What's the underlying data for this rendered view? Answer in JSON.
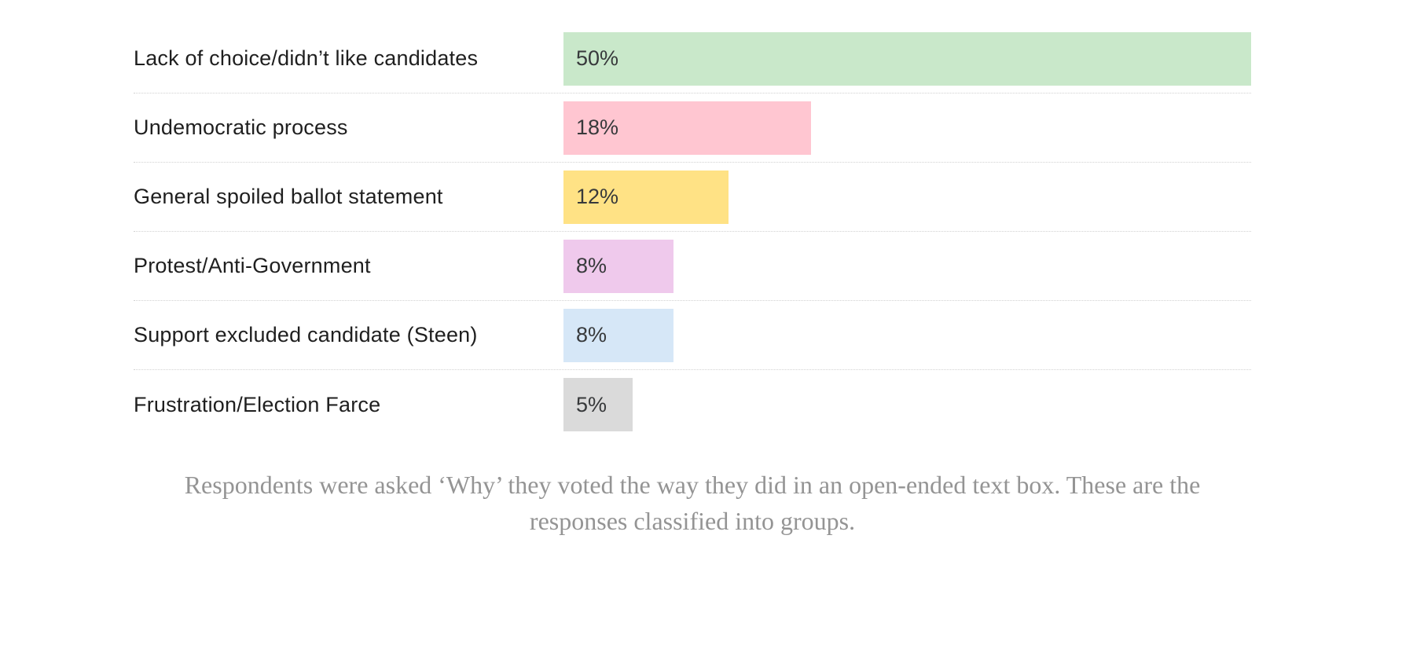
{
  "chart_data": {
    "type": "bar",
    "orientation": "horizontal",
    "categories": [
      "Lack of choice/didn’t like candidates",
      "Undemocratic process",
      "General spoiled ballot statement",
      "Protest/Anti-Government",
      "Support excluded candidate (Steen)",
      "Frustration/Election Farce"
    ],
    "values": [
      50,
      18,
      12,
      8,
      8,
      5
    ],
    "value_labels": [
      "50%",
      "18%",
      "12%",
      "8%",
      "8%",
      "5%"
    ],
    "bar_colors": [
      "#c9e8ca",
      "#ffc6d1",
      "#ffe285",
      "#efc9ec",
      "#d6e7f7",
      "#dadada"
    ],
    "xlim": [
      0,
      50
    ],
    "grid": "dotted-row-separators",
    "legend": "none",
    "title": "",
    "xlabel": "",
    "ylabel": "",
    "caption": "Respondents were asked ‘Why’ they voted the way they did in an open-ended text box. These are the responses classified into groups."
  },
  "colors": {
    "background": "#ffffff",
    "label_text": "#1f1f1f",
    "value_text": "#37393b",
    "separator": "#d2d2d2",
    "caption_text": "#949494"
  }
}
